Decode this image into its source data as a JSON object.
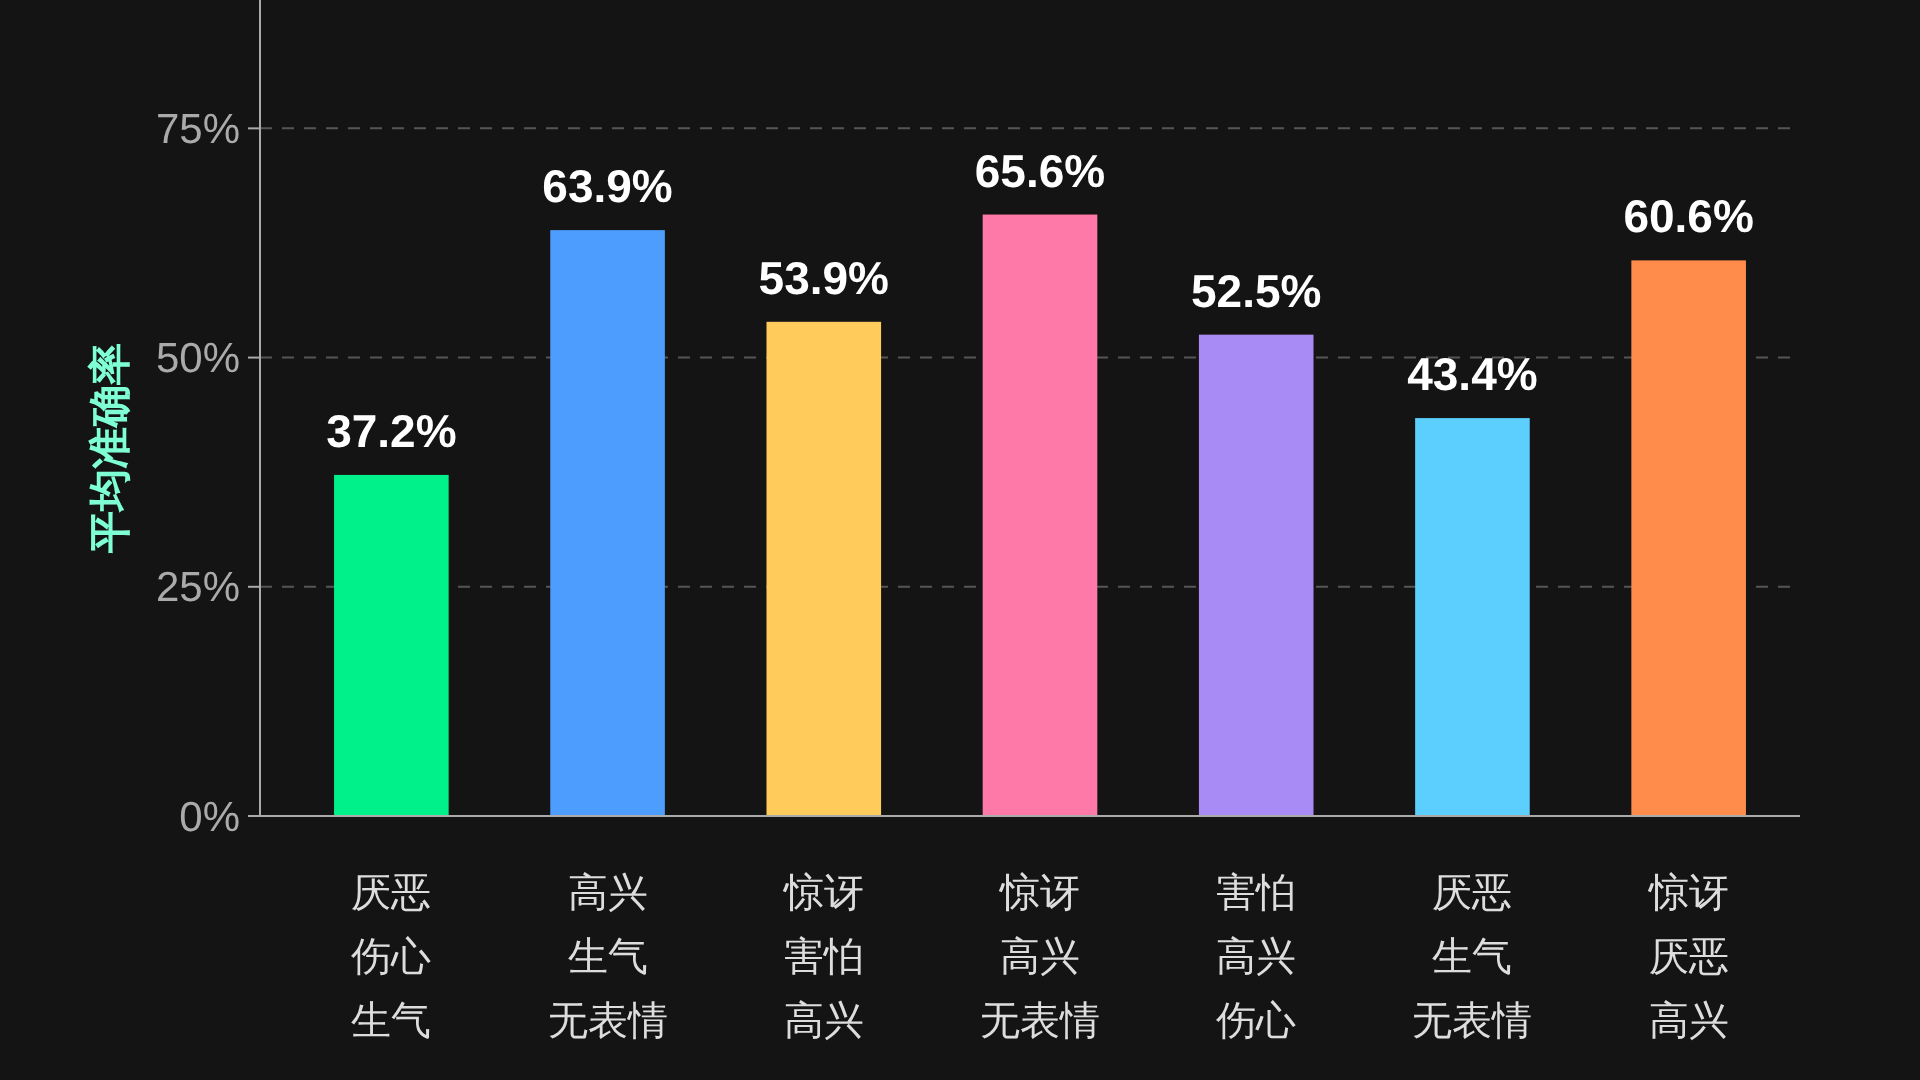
{
  "chart_data": {
    "type": "bar",
    "ylabel": "平均准确率",
    "categories": [
      "厌恶伤心生气",
      "高兴生气无表情",
      "惊讶害怕高兴",
      "惊讶高兴无表情",
      "害怕高兴伤心",
      "厌恶生气无表情",
      "惊讶厌恶高兴"
    ],
    "values": [
      37.2,
      63.9,
      53.9,
      65.6,
      52.5,
      43.4,
      60.6
    ],
    "value_labels": [
      "37.2%",
      "63.9%",
      "53.9%",
      "65.6%",
      "52.5%",
      "43.4%",
      "60.6%"
    ],
    "colors": [
      "#00f08a",
      "#4d9dff",
      "#ffcc5c",
      "#ff79a8",
      "#a98bf5",
      "#5ccfff",
      "#ff8c4a"
    ],
    "ylim": [
      0,
      89
    ],
    "yticks": [
      {
        "value": 0,
        "label": "0%"
      },
      {
        "value": 25,
        "label": "25%"
      },
      {
        "value": 50,
        "label": "50%"
      },
      {
        "value": 75,
        "label": "75%"
      }
    ],
    "grid": "y"
  }
}
